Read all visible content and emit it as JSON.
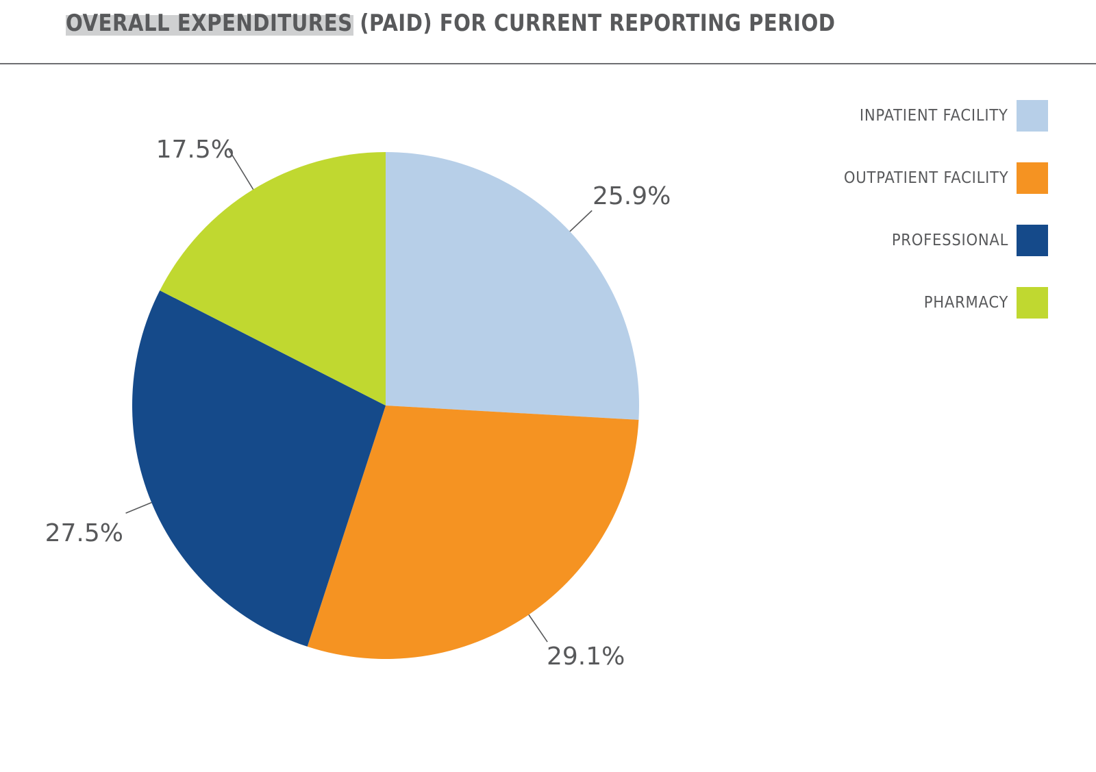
{
  "chart_data": {
    "type": "pie",
    "title": "OVERALL EXPENDITURES (PAID) FOR CURRENT REPORTING PERIOD",
    "categories": [
      "INPATIENT FACILITY",
      "OUTPATIENT FACILITY",
      "PROFESSIONAL",
      "PHARMACY"
    ],
    "values": [
      25.9,
      29.1,
      27.5,
      17.5
    ],
    "value_labels": [
      "25.9%",
      "29.1%",
      "27.5%",
      "17.5%"
    ],
    "colors": [
      "#b7cfe8",
      "#f59322",
      "#154a8a",
      "#c0d830"
    ],
    "legend_placement": "top-right",
    "start": "12 o'clock, clockwise"
  },
  "legend": {
    "items": [
      {
        "label": "INPATIENT FACILITY",
        "color": "#b7cfe8"
      },
      {
        "label": "OUTPATIENT FACILITY",
        "color": "#f59322"
      },
      {
        "label": "PROFESSIONAL",
        "color": "#154a8a"
      },
      {
        "label": "PHARMACY",
        "color": "#c0d830"
      }
    ]
  },
  "colors": {
    "text": "#58595b",
    "title_highlight": "#cfd0d1",
    "rule": "#6d6e71"
  }
}
